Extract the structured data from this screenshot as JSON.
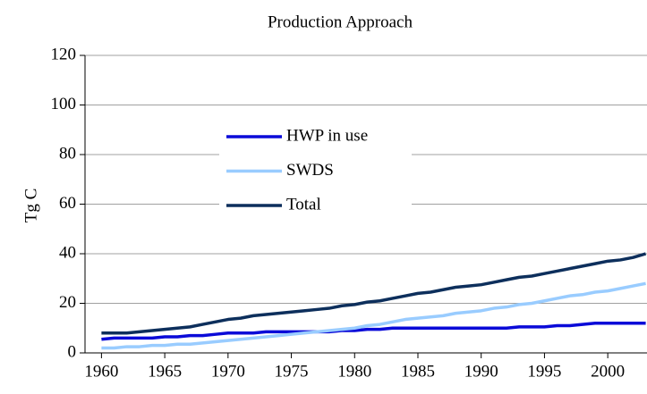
{
  "chart_data": {
    "type": "line",
    "title": "Production Approach",
    "y_label": "Tg C",
    "x": [
      1960,
      1961,
      1962,
      1963,
      1964,
      1965,
      1966,
      1967,
      1968,
      1969,
      1970,
      1971,
      1972,
      1973,
      1974,
      1975,
      1976,
      1977,
      1978,
      1979,
      1980,
      1981,
      1982,
      1983,
      1984,
      1985,
      1986,
      1987,
      1988,
      1989,
      1990,
      1991,
      1992,
      1993,
      1994,
      1995,
      1996,
      1997,
      1998,
      1999,
      2000,
      2001,
      2002,
      2003
    ],
    "series": [
      {
        "name": "HWP in use",
        "color": "#0a0ad8",
        "values": [
          5.5,
          6,
          6,
          6,
          6,
          6.5,
          6.5,
          7,
          7,
          7.5,
          8,
          8,
          8,
          8.5,
          8.5,
          8.5,
          8.5,
          8.5,
          8.5,
          9,
          9,
          9.5,
          9.5,
          10,
          10,
          10,
          10,
          10,
          10,
          10,
          10,
          10,
          10,
          10.5,
          10.5,
          10.5,
          11,
          11,
          11.5,
          12,
          12,
          12,
          12,
          12
        ]
      },
      {
        "name": "SWDS",
        "color": "#99ccff",
        "values": [
          2,
          2,
          2.5,
          2.5,
          3,
          3,
          3.5,
          3.5,
          4,
          4.5,
          5,
          5.5,
          6,
          6.5,
          7,
          7.5,
          8,
          8.5,
          9,
          9.5,
          10,
          11,
          11.5,
          12.5,
          13.5,
          14,
          14.5,
          15,
          16,
          16.5,
          17,
          18,
          18.5,
          19.5,
          20,
          21,
          22,
          23,
          23.5,
          24.5,
          25,
          26,
          27,
          28
        ]
      },
      {
        "name": "Total",
        "color": "#0d2f5c",
        "values": [
          8,
          8,
          8,
          8.5,
          9,
          9.5,
          10,
          10.5,
          11.5,
          12.5,
          13.5,
          14,
          15,
          15.5,
          16,
          16.5,
          17,
          17.5,
          18,
          19,
          19.5,
          20.5,
          21,
          22,
          23,
          24,
          24.5,
          25.5,
          26.5,
          27,
          27.5,
          28.5,
          29.5,
          30.5,
          31,
          32,
          33,
          34,
          35,
          36,
          37,
          37.5,
          38.5,
          40
        ]
      }
    ],
    "xlim": [
      1958.7,
      2003.1
    ],
    "xticks": [
      1960,
      1965,
      1970,
      1975,
      1980,
      1985,
      1990,
      1995,
      2000
    ],
    "ylim": [
      0,
      120
    ],
    "yticks": [
      0,
      20,
      40,
      60,
      80,
      100,
      120
    ],
    "grid": true,
    "legend": "center-left"
  }
}
